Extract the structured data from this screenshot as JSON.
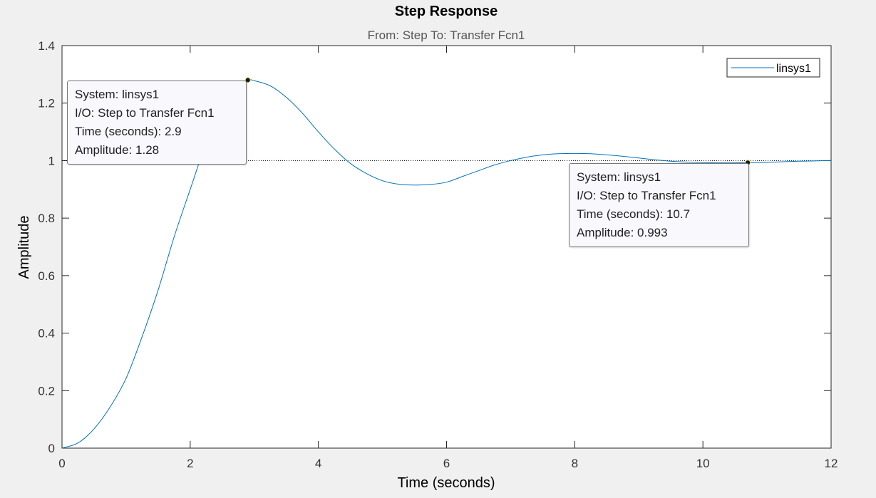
{
  "chart_data": {
    "type": "line",
    "title": "Step Response",
    "subtitle": "From: Step  To: Transfer Fcn1",
    "xlabel": "Time (seconds)",
    "ylabel": "Amplitude",
    "xlim": [
      0,
      12
    ],
    "ylim": [
      0,
      1.4
    ],
    "xticks": [
      "0",
      "2",
      "4",
      "6",
      "8",
      "10",
      "12"
    ],
    "yticks": [
      "0",
      "0.2",
      "0.4",
      "0.6",
      "0.8",
      "1",
      "1.2",
      "1.4"
    ],
    "grid": false,
    "legend_position": "top-right",
    "steady_state_value": 1,
    "series": [
      {
        "name": "linsys1",
        "color": "#0072bd",
        "x": [
          0,
          0.25,
          0.5,
          0.75,
          1.0,
          1.25,
          1.5,
          1.75,
          2.0,
          2.25,
          2.5,
          2.75,
          2.9,
          3.0,
          3.25,
          3.5,
          3.75,
          4.0,
          4.25,
          4.5,
          4.75,
          5.0,
          5.25,
          5.5,
          5.75,
          6.0,
          6.25,
          6.5,
          6.75,
          7.0,
          7.25,
          7.5,
          7.75,
          8.0,
          8.25,
          8.5,
          8.75,
          9.0,
          9.25,
          9.5,
          9.75,
          10.0,
          10.25,
          10.5,
          10.75,
          11.0,
          11.25,
          11.5,
          11.75,
          12.0
        ],
        "y": [
          0,
          0.018,
          0.067,
          0.143,
          0.243,
          0.388,
          0.55,
          0.735,
          0.9,
          1.06,
          1.17,
          1.26,
          1.28,
          1.278,
          1.26,
          1.22,
          1.165,
          1.1,
          1.04,
          0.99,
          0.955,
          0.93,
          0.918,
          0.915,
          0.917,
          0.925,
          0.945,
          0.965,
          0.985,
          1.0,
          1.012,
          1.02,
          1.024,
          1.025,
          1.024,
          1.02,
          1.015,
          1.009,
          1.003,
          0.998,
          0.995,
          0.993,
          0.992,
          0.992,
          0.993,
          0.994,
          0.996,
          0.998,
          0.999,
          1.0
        ]
      }
    ],
    "datatips": [
      {
        "x": 2.9,
        "y": 1.28,
        "box_anchor": "left",
        "lines": [
          "System: linsys1",
          "I/O: Step to Transfer Fcn1",
          "Time (seconds): 2.9",
          "Amplitude: 1.28"
        ]
      },
      {
        "x": 10.7,
        "y": 0.993,
        "box_anchor": "below-left",
        "lines": [
          "System: linsys1",
          "I/O: Step to Transfer Fcn1",
          "Time (seconds): 10.7",
          "Amplitude: 0.993"
        ]
      }
    ]
  }
}
